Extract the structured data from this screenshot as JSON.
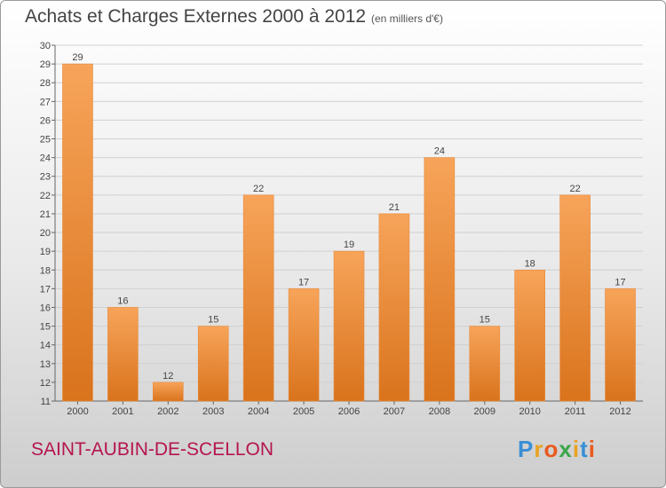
{
  "header": {
    "title": "Achats et Charges Externes 2000 à 2012",
    "subtitle": "(en milliers d'€)"
  },
  "footer": {
    "commune": "SAINT-AUBIN-DE-SCELLON",
    "logo_letters": [
      "P",
      "r",
      "o",
      "x",
      "i",
      "t",
      "i"
    ],
    "logo_colors": [
      "#3a8fd6",
      "#e8a321",
      "#e85a1f",
      "#3aa64a",
      "#e8a321",
      "#3a8fd6",
      "#e85a1f"
    ]
  },
  "chart_data": {
    "type": "bar",
    "categories": [
      "2000",
      "2001",
      "2002",
      "2003",
      "2004",
      "2005",
      "2006",
      "2007",
      "2008",
      "2009",
      "2010",
      "2011",
      "2012"
    ],
    "values": [
      29,
      16,
      12,
      15,
      22,
      17,
      19,
      21,
      24,
      15,
      18,
      22,
      17
    ],
    "ylim": [
      11,
      30
    ],
    "yticks": [
      11,
      12,
      13,
      14,
      15,
      16,
      17,
      18,
      19,
      20,
      21,
      22,
      23,
      24,
      25,
      26,
      27,
      28,
      29,
      30
    ],
    "grid": true,
    "bar_color": "#f0903a"
  }
}
